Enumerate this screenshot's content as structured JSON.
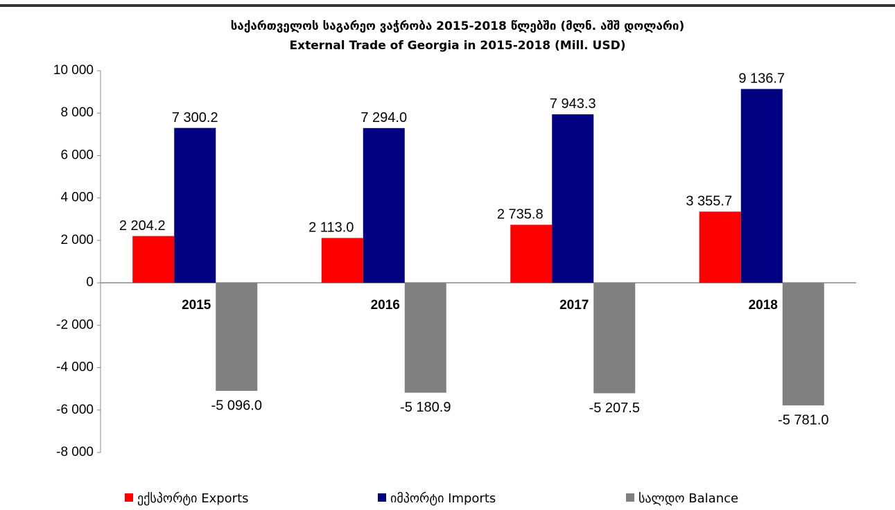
{
  "chart_data": {
    "type": "bar",
    "title": "საქართველოს საგარეო ვაჭრობა  2015-2018 წლებში (მლნ. აშშ დოლარი)",
    "subtitle": "External Trade of Georgia in 2015-2018  (Mill. USD)",
    "categories": [
      "2015",
      "2016",
      "2017",
      "2018"
    ],
    "series": [
      {
        "name": "ექსპორტი Exports",
        "color": "#ff0000",
        "values": [
          2204.2,
          2113.0,
          2735.8,
          3355.7
        ],
        "value_labels": [
          "2 204.2",
          "2 113.0",
          "2 735.8",
          "3 355.7"
        ]
      },
      {
        "name": "იმპორტი Imports",
        "color": "#000080",
        "values": [
          7300.2,
          7294.0,
          7943.3,
          9136.7
        ],
        "value_labels": [
          "7 300.2",
          "7 294.0",
          "7 943.3",
          "9 136.7"
        ]
      },
      {
        "name": "სალდო Balance",
        "color": "#808080",
        "values": [
          -5096.0,
          -5180.9,
          -5207.5,
          -5781.0
        ],
        "value_labels": [
          "-5 096.0",
          "-5 180.9",
          "-5 207.5",
          "-5 781.0"
        ]
      }
    ],
    "ylim": [
      -8000,
      10000
    ],
    "yticks": [
      {
        "value": -8000,
        "label": "-8 000"
      },
      {
        "value": -6000,
        "label": "-6 000"
      },
      {
        "value": -4000,
        "label": "-4 000"
      },
      {
        "value": -2000,
        "label": "-2 000"
      },
      0,
      {
        "value": 2000,
        "label": "2 000"
      },
      {
        "value": 4000,
        "label": "4 000"
      },
      {
        "value": 6000,
        "label": "6 000"
      },
      {
        "value": 8000,
        "label": "8 000"
      },
      {
        "value": 10000,
        "label": "10 000"
      }
    ],
    "legend": "bottom"
  }
}
